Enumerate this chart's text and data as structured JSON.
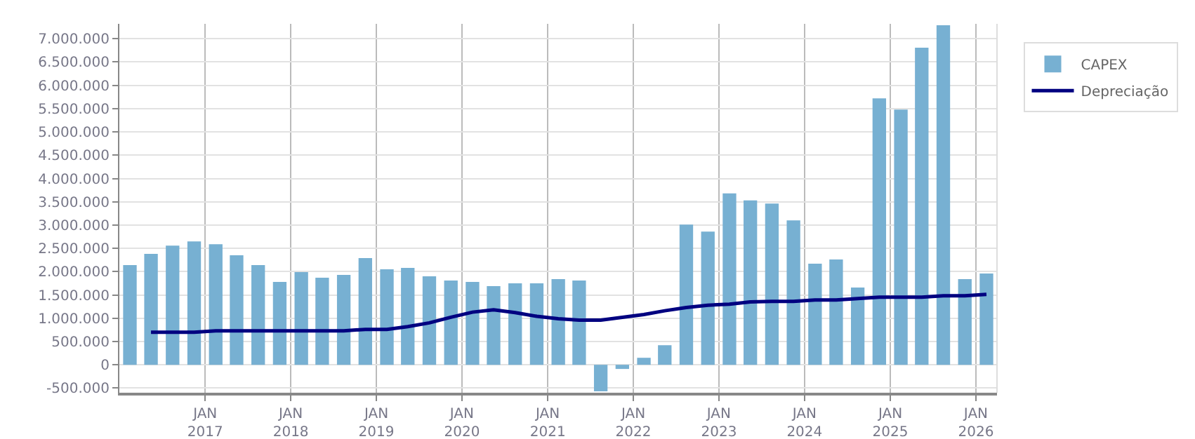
{
  "chart_data": {
    "type": "bar",
    "x": [
      "2016-02-15",
      "2016-05-15",
      "2016-08-15",
      "2016-11-15",
      "2017-02-15",
      "2017-05-15",
      "2017-08-15",
      "2017-11-15",
      "2018-02-15",
      "2018-05-15",
      "2018-08-15",
      "2018-11-15",
      "2019-02-15",
      "2019-05-15",
      "2019-08-15",
      "2019-11-15",
      "2020-02-15",
      "2020-05-15",
      "2020-08-15",
      "2020-11-15",
      "2021-02-15",
      "2021-05-15",
      "2021-08-15",
      "2021-11-15",
      "2022-02-15",
      "2022-05-15",
      "2022-08-15",
      "2022-11-15",
      "2023-02-15",
      "2023-05-15",
      "2023-08-15",
      "2023-11-15",
      "2024-02-15",
      "2024-05-15",
      "2024-08-15",
      "2024-11-15",
      "2025-02-15",
      "2025-05-15",
      "2025-08-15",
      "2025-11-15",
      "2026-02-15"
    ],
    "series": [
      {
        "name": "CAPEX",
        "color": "#77b0d2",
        "values": [
          2140000,
          2380000,
          2560000,
          2650000,
          2590000,
          2350000,
          2140000,
          1780000,
          1990000,
          1870000,
          1930000,
          2290000,
          2050000,
          2080000,
          1900000,
          1810000,
          1780000,
          1690000,
          1750000,
          1750000,
          1840000,
          1810000,
          -570000,
          -90000,
          150000,
          420000,
          3010000,
          2860000,
          3680000,
          3530000,
          3460000,
          3100000,
          2170000,
          2260000,
          1660000,
          5720000,
          5480000,
          6810000,
          7290000,
          1840000,
          1960000
        ]
      },
      {
        "name": "Depreciação",
        "type": "line",
        "color": "#000080",
        "values": [
          null,
          700000,
          700000,
          700000,
          730000,
          730000,
          730000,
          730000,
          730000,
          730000,
          730000,
          760000,
          760000,
          820000,
          900000,
          1020000,
          1130000,
          1180000,
          1120000,
          1040000,
          990000,
          960000,
          960000,
          1020000,
          1080000,
          1160000,
          1230000,
          1280000,
          1300000,
          1350000,
          1360000,
          1360000,
          1390000,
          1390000,
          1420000,
          1450000,
          1450000,
          1450000,
          1480000,
          1480000,
          1510000
        ]
      }
    ],
    "xlim": [
      "2016-01-01",
      "2026-04-01"
    ],
    "xticks": [
      {
        "value": "2017-01-01",
        "label": "JAN\n2017"
      },
      {
        "value": "2018-01-01",
        "label": "JAN\n2018"
      },
      {
        "value": "2019-01-01",
        "label": "JAN\n2019"
      },
      {
        "value": "2020-01-01",
        "label": "JAN\n2020"
      },
      {
        "value": "2021-01-01",
        "label": "JAN\n2021"
      },
      {
        "value": "2022-01-01",
        "label": "JAN\n2022"
      },
      {
        "value": "2023-01-01",
        "label": "JAN\n2023"
      },
      {
        "value": "2024-01-01",
        "label": "JAN\n2024"
      },
      {
        "value": "2025-01-01",
        "label": "JAN\n2025"
      },
      {
        "value": "2026-01-01",
        "label": "JAN\n2026"
      }
    ],
    "ylim": [
      -600000,
      7320000
    ],
    "yticks": [
      {
        "value": -500000,
        "label": "-500.000"
      },
      0,
      {
        "value": 500000,
        "label": "500.000"
      },
      {
        "value": 1000000,
        "label": "1.000.000"
      },
      {
        "value": 1500000,
        "label": "1.500.000"
      },
      {
        "value": 2000000,
        "label": "2.000.000"
      },
      {
        "value": 2500000,
        "label": "2.500.000"
      },
      {
        "value": 3000000,
        "label": "3.000.000"
      },
      {
        "value": 3500000,
        "label": "3.500.000"
      },
      {
        "value": 4000000,
        "label": "4.000.000"
      },
      {
        "value": 4500000,
        "label": "4.500.000"
      },
      {
        "value": 5000000,
        "label": "5.000.000"
      },
      {
        "value": 5500000,
        "label": "5.500.000"
      },
      {
        "value": 6000000,
        "label": "6.000.000"
      },
      {
        "value": 6500000,
        "label": "6.500.000"
      },
      {
        "value": 7000000,
        "label": "7.000.000"
      }
    ],
    "grid": true,
    "legend": "top right"
  }
}
